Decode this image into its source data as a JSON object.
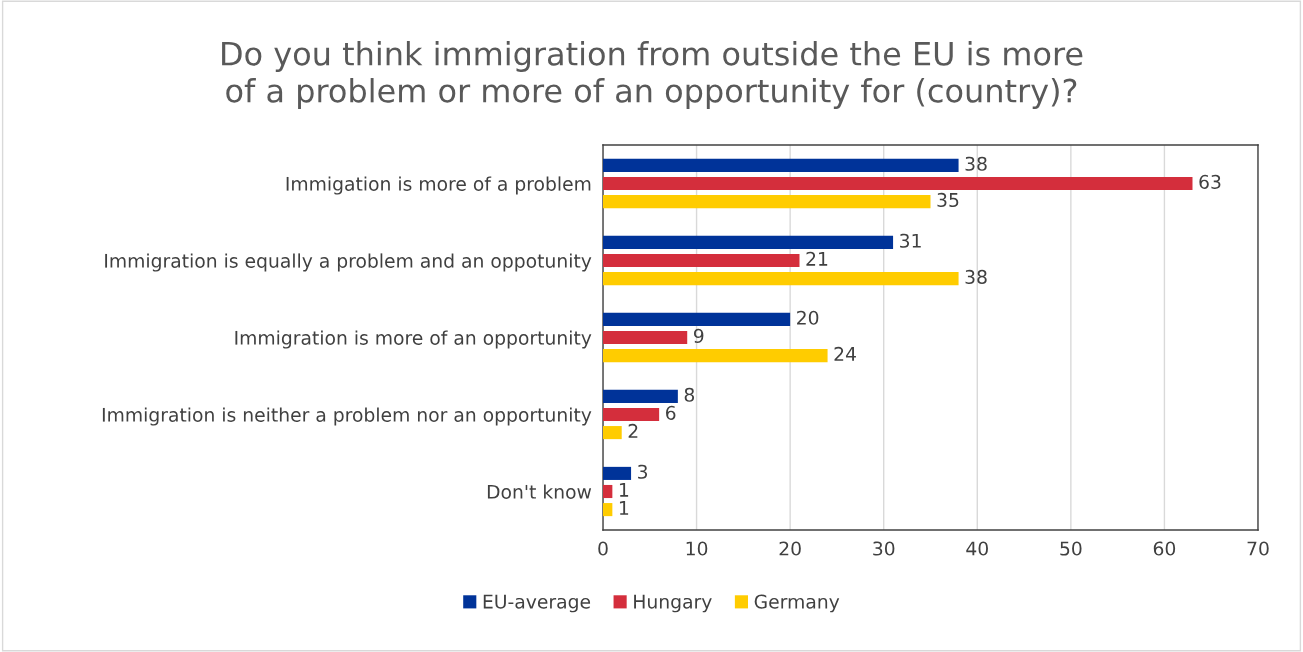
{
  "chart_data": {
    "type": "bar",
    "orientation": "horizontal",
    "title": "Do you think immigration from outside the EU is more\nof a problem or more of an opportunity for (country)?",
    "categories": [
      "Immigation is more of a problem",
      "Immigration is equally a problem and an oppotunity",
      "Immigration is more of an opportunity",
      "Immigration is neither a problem nor an opportunity",
      "Don't know"
    ],
    "series": [
      {
        "name": "EU-average",
        "color": "#003399",
        "values": [
          38,
          31,
          20,
          8,
          3
        ]
      },
      {
        "name": "Hungary",
        "color": "#d42e3c",
        "values": [
          63,
          21,
          9,
          6,
          1
        ]
      },
      {
        "name": "Germany",
        "color": "#ffcc00",
        "values": [
          35,
          38,
          24,
          2,
          1
        ]
      }
    ],
    "xlim": [
      0,
      70
    ],
    "xticks": [
      0,
      10,
      20,
      30,
      40,
      50,
      60,
      70
    ],
    "grid": "x",
    "legend": "bottom",
    "data_labels": true
  }
}
